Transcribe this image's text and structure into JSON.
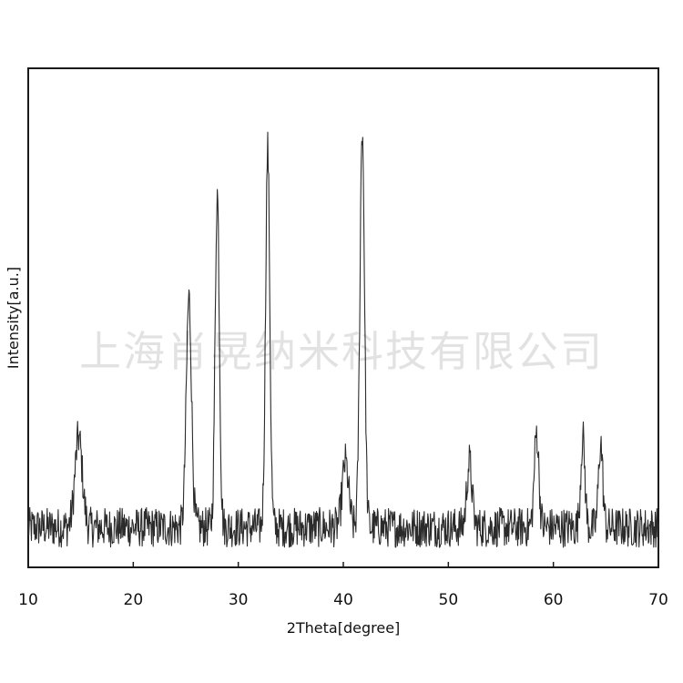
{
  "chart_data": {
    "type": "line",
    "title": "",
    "xlabel": "2Theta[degree]",
    "ylabel": "Intensity[a.u.]",
    "xlim": [
      10,
      70
    ],
    "ylim": [
      0,
      100
    ],
    "x_ticks": [
      10,
      20,
      30,
      40,
      50,
      60,
      70
    ],
    "y_ticks_shown": false,
    "grid": false,
    "legend": "none",
    "line_color": "#2b2b2b",
    "baseline_intensity": 8,
    "noise_amplitude": 4,
    "peaks": [
      {
        "two_theta": 14.8,
        "intensity": 18,
        "width": 0.35
      },
      {
        "two_theta": 25.3,
        "intensity": 46,
        "width": 0.25
      },
      {
        "two_theta": 28.0,
        "intensity": 67,
        "width": 0.2
      },
      {
        "two_theta": 32.8,
        "intensity": 76,
        "width": 0.2
      },
      {
        "two_theta": 40.2,
        "intensity": 13,
        "width": 0.3
      },
      {
        "two_theta": 41.8,
        "intensity": 80,
        "width": 0.22
      },
      {
        "two_theta": 52.0,
        "intensity": 13,
        "width": 0.25
      },
      {
        "two_theta": 58.4,
        "intensity": 19,
        "width": 0.22
      },
      {
        "two_theta": 62.8,
        "intensity": 18,
        "width": 0.2
      },
      {
        "two_theta": 64.5,
        "intensity": 17,
        "width": 0.2
      }
    ]
  },
  "watermark": {
    "text": "上海肖晃纳米科技有限公司"
  }
}
